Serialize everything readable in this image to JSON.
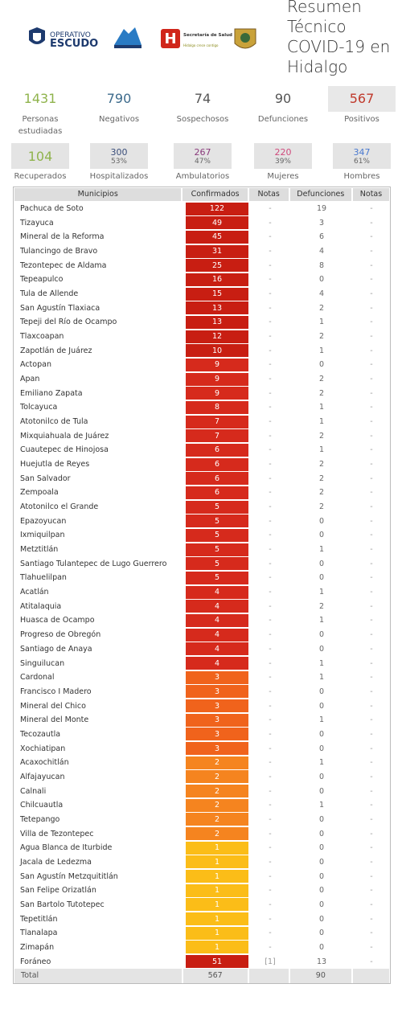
{
  "header": {
    "title": "Resumen Técnico COVID-19 en Hidalgo",
    "logos": {
      "operativo": "OPERATIVO",
      "escudo": "ESCUDO",
      "secretaria": "Secretaría de Salud",
      "lema": "Hidalgo crece contigo"
    }
  },
  "stats": {
    "row1": [
      {
        "value": 1431,
        "label": "Personas estudiadas",
        "color": "#8fb34c"
      },
      {
        "value": 790,
        "label": "Negativos",
        "color": "#3d6b8c"
      },
      {
        "value": 74,
        "label": "Sospechosos",
        "color": "#555555"
      },
      {
        "value": 90,
        "label": "Defunciones",
        "color": "#555555"
      },
      {
        "value": 567,
        "label": "Positivos",
        "color": "#c0392b"
      }
    ],
    "row2": [
      {
        "value": 104,
        "label": "Recuperados",
        "color": "#8fb34c"
      },
      {
        "value": 300,
        "percent": "53%",
        "label": "Hospitalizados",
        "color": "#3a4d7a"
      },
      {
        "value": 267,
        "percent": "47%",
        "label": "Ambulatorios",
        "color": "#8a3a7c"
      },
      {
        "value": 220,
        "percent": "39%",
        "label": "Mujeres",
        "color": "#d04a7c"
      },
      {
        "value": 347,
        "percent": "61%",
        "label": "Hombres",
        "color": "#4a7ad0"
      }
    ]
  },
  "table": {
    "columns": [
      "Municipios",
      "Confirmados",
      "Notas",
      "Defunciones",
      "Notas"
    ],
    "rows": [
      [
        "Pachuca de Soto",
        122,
        "-",
        19,
        "-",
        "#c81e12"
      ],
      [
        "Tizayuca",
        49,
        "-",
        3,
        "-",
        "#c81e12"
      ],
      [
        "Mineral de la Reforma",
        45,
        "-",
        6,
        "-",
        "#c81e12"
      ],
      [
        "Tulancingo de Bravo",
        31,
        "-",
        4,
        "-",
        "#c81e12"
      ],
      [
        "Tezontepec de Aldama",
        25,
        "-",
        8,
        "-",
        "#c81e12"
      ],
      [
        "Tepeapulco",
        16,
        "-",
        0,
        "-",
        "#c81e12"
      ],
      [
        "Tula de Allende",
        15,
        "-",
        4,
        "-",
        "#c81e12"
      ],
      [
        "San Agustín Tlaxiaca",
        13,
        "-",
        2,
        "-",
        "#c81e12"
      ],
      [
        "Tepeji del Río de Ocampo",
        13,
        "-",
        1,
        "-",
        "#c81e12"
      ],
      [
        "Tlaxcoapan",
        12,
        "-",
        2,
        "-",
        "#c81e12"
      ],
      [
        "Zapotlán de Juárez",
        10,
        "-",
        1,
        "-",
        "#c81e12"
      ],
      [
        "Actopan",
        9,
        "-",
        0,
        "-",
        "#d62a1c"
      ],
      [
        "Apan",
        9,
        "-",
        2,
        "-",
        "#d62a1c"
      ],
      [
        "Emiliano Zapata",
        9,
        "-",
        2,
        "-",
        "#d62a1c"
      ],
      [
        "Tolcayuca",
        8,
        "-",
        1,
        "-",
        "#d62a1c"
      ],
      [
        "Atotonilco de Tula",
        7,
        "-",
        1,
        "-",
        "#d62a1c"
      ],
      [
        "Mixquiahuala de Juárez",
        7,
        "-",
        2,
        "-",
        "#d62a1c"
      ],
      [
        "Cuautepec de Hinojosa",
        6,
        "-",
        1,
        "-",
        "#d62a1c"
      ],
      [
        "Huejutla de Reyes",
        6,
        "-",
        2,
        "-",
        "#d62a1c"
      ],
      [
        "San Salvador",
        6,
        "-",
        2,
        "-",
        "#d62a1c"
      ],
      [
        "Zempoala",
        6,
        "-",
        2,
        "-",
        "#d62a1c"
      ],
      [
        "Atotonilco el Grande",
        5,
        "-",
        2,
        "-",
        "#d62a1c"
      ],
      [
        "Epazoyucan",
        5,
        "-",
        0,
        "-",
        "#d62a1c"
      ],
      [
        "Ixmiquilpan",
        5,
        "-",
        0,
        "-",
        "#d62a1c"
      ],
      [
        "Metztitlán",
        5,
        "-",
        1,
        "-",
        "#d62a1c"
      ],
      [
        "Santiago Tulantepec de Lugo Guerrero",
        5,
        "-",
        0,
        "-",
        "#d62a1c"
      ],
      [
        "Tlahuelilpan",
        5,
        "-",
        0,
        "-",
        "#d62a1c"
      ],
      [
        "Acatlán",
        4,
        "-",
        1,
        "-",
        "#d62a1c"
      ],
      [
        "Atitalaquia",
        4,
        "-",
        2,
        "-",
        "#d62a1c"
      ],
      [
        "Huasca de Ocampo",
        4,
        "-",
        1,
        "-",
        "#d62a1c"
      ],
      [
        "Progreso de Obregón",
        4,
        "-",
        0,
        "-",
        "#d62a1c"
      ],
      [
        "Santiago de Anaya",
        4,
        "-",
        0,
        "-",
        "#d62a1c"
      ],
      [
        "Singuilucan",
        4,
        "-",
        1,
        "-",
        "#d62a1c"
      ],
      [
        "Cardonal",
        3,
        "-",
        1,
        "-",
        "#f0631c"
      ],
      [
        "Francisco I Madero",
        3,
        "-",
        0,
        "-",
        "#f0631c"
      ],
      [
        "Mineral del Chico",
        3,
        "-",
        0,
        "-",
        "#f0631c"
      ],
      [
        "Mineral del Monte",
        3,
        "-",
        1,
        "-",
        "#f0631c"
      ],
      [
        "Tecozautla",
        3,
        "-",
        0,
        "-",
        "#f0631c"
      ],
      [
        "Xochiatipan",
        3,
        "-",
        0,
        "-",
        "#f0631c"
      ],
      [
        "Acaxochitlán",
        2,
        "-",
        1,
        "-",
        "#f5841f"
      ],
      [
        "Alfajayucan",
        2,
        "-",
        0,
        "-",
        "#f5841f"
      ],
      [
        "Calnali",
        2,
        "-",
        0,
        "-",
        "#f5841f"
      ],
      [
        "Chilcuautla",
        2,
        "-",
        1,
        "-",
        "#f5841f"
      ],
      [
        "Tetepango",
        2,
        "-",
        0,
        "-",
        "#f5841f"
      ],
      [
        "Villa de Tezontepec",
        2,
        "-",
        0,
        "-",
        "#f5841f"
      ],
      [
        "Agua Blanca de Iturbide",
        1,
        "-",
        0,
        "-",
        "#fbbd18"
      ],
      [
        "Jacala de Ledezma",
        1,
        "-",
        0,
        "-",
        "#fbbd18"
      ],
      [
        "San Agustín Metzquititlán",
        1,
        "-",
        0,
        "-",
        "#fbbd18"
      ],
      [
        "San Felipe Orizatlán",
        1,
        "-",
        0,
        "-",
        "#fbbd18"
      ],
      [
        "San Bartolo Tutotepec",
        1,
        "-",
        0,
        "-",
        "#fbbd18"
      ],
      [
        "Tepetitlán",
        1,
        "-",
        0,
        "-",
        "#fbbd18"
      ],
      [
        "Tlanalapa",
        1,
        "-",
        0,
        "-",
        "#fbbd18"
      ],
      [
        "Zimapán",
        1,
        "-",
        0,
        "-",
        "#fbbd18"
      ],
      [
        "Foráneo",
        51,
        "[1]",
        13,
        "-",
        "#c81e12"
      ]
    ],
    "total": {
      "label": "Total",
      "confirmados": 567,
      "defunciones": 90
    }
  }
}
